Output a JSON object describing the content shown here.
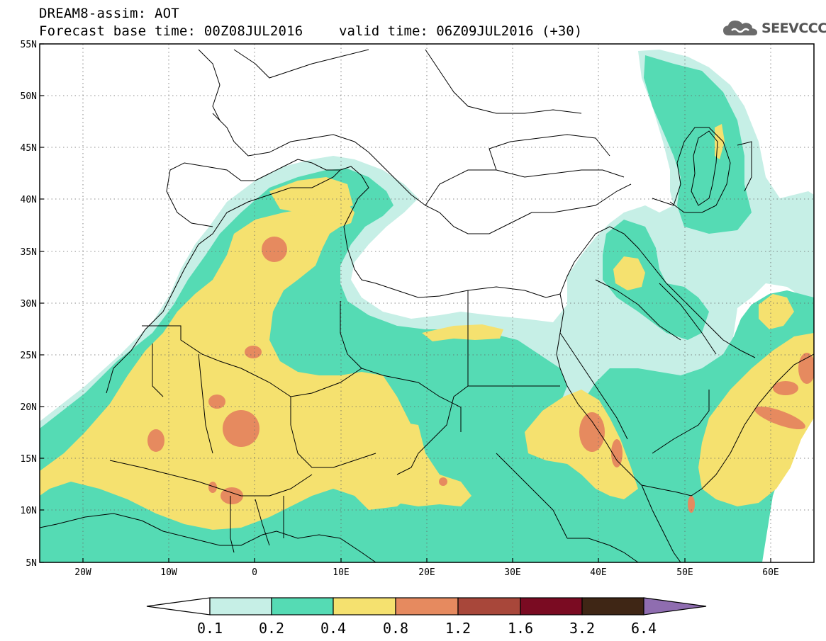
{
  "header": {
    "title": "DREAM8-assim: AOT",
    "base_time": "Forecast base time: 00Z08JUL2016",
    "valid_time": "valid time: 06Z09JUL2016 (+30)"
  },
  "logo": {
    "icon": "cloud-icon",
    "text": "SEEVCCC"
  },
  "map": {
    "lat_labels": [
      "55N",
      "50N",
      "45N",
      "40N",
      "35N",
      "30N",
      "25N",
      "20N",
      "15N",
      "10N",
      "5N"
    ],
    "lon_labels": [
      "20W",
      "10W",
      "0",
      "10E",
      "20E",
      "30E",
      "40E",
      "50E",
      "60E"
    ],
    "lon_range": [
      -25,
      65
    ],
    "lat_range": [
      5,
      55
    ]
  },
  "colorbar": {
    "labels": [
      "0.1",
      "0.2",
      "0.4",
      "0.8",
      "1.2",
      "1.6",
      "3.2",
      "6.4"
    ],
    "colors": [
      "#ffffff",
      "#c6efe6",
      "#55dbb4",
      "#f5e16f",
      "#e68a5f",
      "#a8473a",
      "#7a0b22",
      "#3f2615",
      "#8f6db0"
    ]
  }
}
